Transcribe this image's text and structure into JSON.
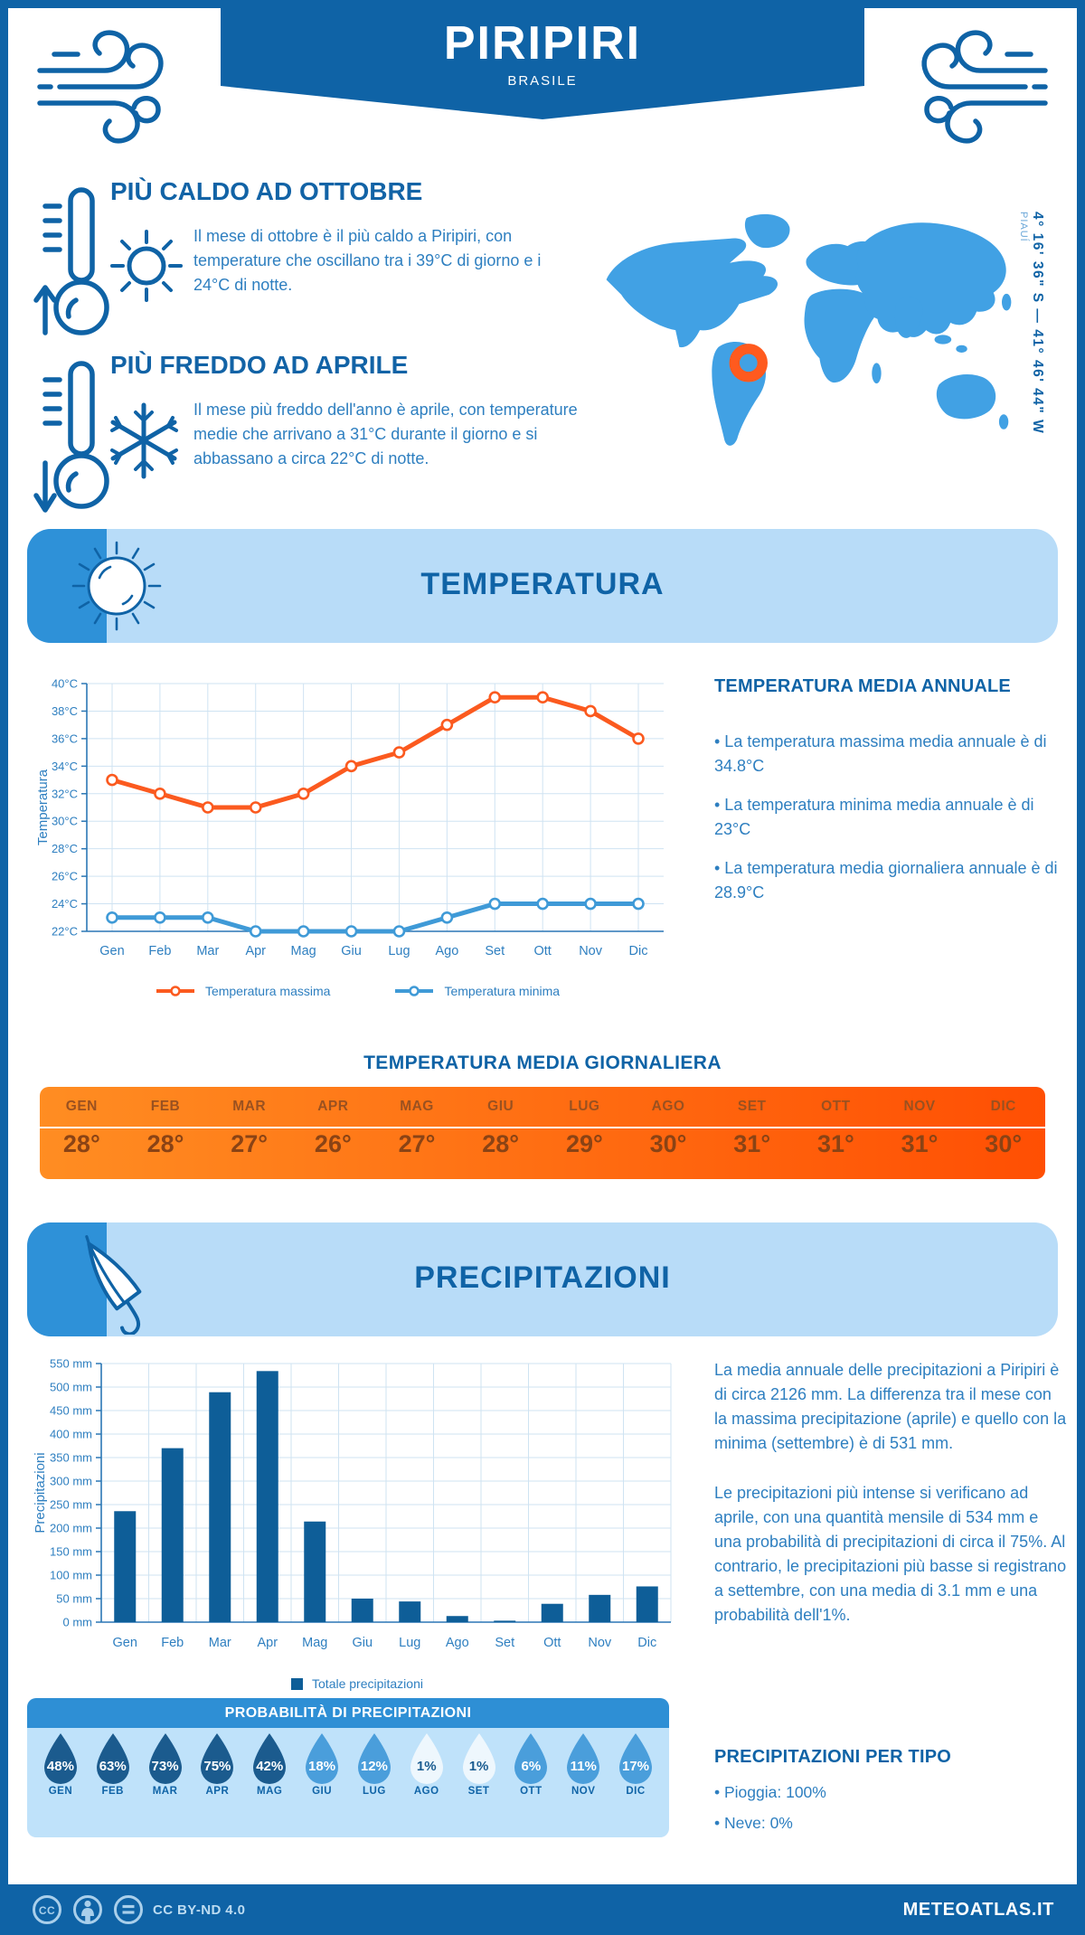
{
  "header": {
    "title": "PIRIPIRI",
    "subtitle": "BRASILE"
  },
  "highlights": {
    "hot": {
      "title": "PIÙ CALDO AD OTTOBRE",
      "body": "Il mese di ottobre è il più caldo a Piripiri, con temperature che oscillano tra i 39°C di giorno e i 24°C di notte."
    },
    "cold": {
      "title": "PIÙ FREDDO AD APRILE",
      "body": "Il mese più freddo dell'anno è aprile, con temperature medie che arrivano a 31°C durante il giorno e si abbassano a circa 22°C di notte."
    }
  },
  "map": {
    "coordinates": "4° 16' 36\" S — 41° 46' 44\" W",
    "region": "PIAUÍ"
  },
  "sections": {
    "temperature": "TEMPERATURA",
    "precipitation": "PRECIPITAZIONI"
  },
  "annual": {
    "title": "TEMPERATURA MEDIA ANNUALE",
    "bullets": [
      "• La temperatura massima media annuale è di 34.8°C",
      "• La temperatura minima media annuale è di 23°C",
      "• La temperatura media giornaliera annuale è di 28.9°C"
    ]
  },
  "daily_table": {
    "title": "TEMPERATURA MEDIA GIORNALIERA",
    "months": [
      "GEN",
      "FEB",
      "MAR",
      "APR",
      "MAG",
      "GIU",
      "LUG",
      "AGO",
      "SET",
      "OTT",
      "NOV",
      "DIC"
    ],
    "values": [
      "28°",
      "28°",
      "27°",
      "26°",
      "27°",
      "28°",
      "29°",
      "30°",
      "31°",
      "31°",
      "31°",
      "30°"
    ]
  },
  "precip_text": {
    "p1": "La media annuale delle precipitazioni a Piripiri è di circa 2126 mm. La differenza tra il mese con la massima precipitazione (aprile) e quello con la minima (settembre) è di 531 mm.",
    "p2": "Le precipitazioni più intense si verificano ad aprile, con una quantità mensile di 534 mm e una probabilità di precipitazioni di circa il 75%. Al contrario, le precipitazioni più basse si registrano a settembre, con una media di 3.1 mm e una probabilità dell'1%."
  },
  "probability": {
    "title": "PROBABILITÀ DI PRECIPITAZIONI",
    "months": [
      "GEN",
      "FEB",
      "MAR",
      "APR",
      "MAG",
      "GIU",
      "LUG",
      "AGO",
      "SET",
      "OTT",
      "NOV",
      "DIC"
    ],
    "values": [
      "48%",
      "63%",
      "73%",
      "75%",
      "42%",
      "18%",
      "12%",
      "1%",
      "1%",
      "6%",
      "11%",
      "17%"
    ],
    "levels": [
      "dark",
      "dark",
      "dark",
      "dark",
      "dark",
      "mid",
      "mid",
      "light",
      "light",
      "mid",
      "mid",
      "mid"
    ]
  },
  "precip_type": {
    "title": "PRECIPITAZIONI PER TIPO",
    "bullets": [
      "• Pioggia: 100%",
      "• Neve: 0%"
    ]
  },
  "footer": {
    "license": "CC BY-ND 4.0",
    "brand": "METEOATLAS.IT"
  },
  "colors": {
    "primary": "#0f63a6",
    "body_text": "#2e7fc0",
    "banner_bg": "#b8dcf8",
    "banner_tab": "#2e91d8",
    "map_fill": "#41a1e4",
    "marker": "#ff5a1e",
    "grid": "#cfe3f2",
    "axis": "#2b77b5",
    "table_gradient": [
      "#ff8d22",
      "#ff4f03"
    ],
    "drop_dark": "#1b5b8e",
    "drop_mid": "#4a9edb",
    "drop_light": "#eef7fd"
  },
  "chart_data": [
    {
      "type": "line",
      "title": "",
      "categories": [
        "Gen",
        "Feb",
        "Mar",
        "Apr",
        "Mag",
        "Giu",
        "Lug",
        "Ago",
        "Set",
        "Ott",
        "Nov",
        "Dic"
      ],
      "series": [
        {
          "name": "Temperatura massima",
          "color": "#fb5a1f",
          "values": [
            33,
            32,
            31,
            31,
            32,
            34,
            35,
            37,
            39,
            39,
            38,
            36
          ]
        },
        {
          "name": "Temperatura minima",
          "color": "#3f9ad7",
          "values": [
            23,
            23,
            23,
            22,
            22,
            22,
            22,
            23,
            24,
            24,
            24,
            24
          ]
        }
      ],
      "xlabel": "",
      "ylabel": "Temperatura",
      "ylim": [
        22,
        40
      ],
      "ytick_step": 2,
      "ytick_suffix": "°C",
      "grid": true,
      "legend_position": "bottom"
    },
    {
      "type": "bar",
      "title": "",
      "categories": [
        "Gen",
        "Feb",
        "Mar",
        "Apr",
        "Mag",
        "Giu",
        "Lug",
        "Ago",
        "Set",
        "Ott",
        "Nov",
        "Dic"
      ],
      "values": [
        236,
        370,
        489,
        534,
        214,
        50,
        44,
        13,
        3.1,
        39,
        58,
        76
      ],
      "series_name": "Totale precipitazioni",
      "xlabel": "",
      "ylabel": "Precipitazioni",
      "ylim": [
        0,
        550
      ],
      "ytick_step": 50,
      "ytick_suffix": " mm",
      "bar_color": "#0e5e98",
      "grid": true,
      "legend_position": "bottom"
    }
  ]
}
